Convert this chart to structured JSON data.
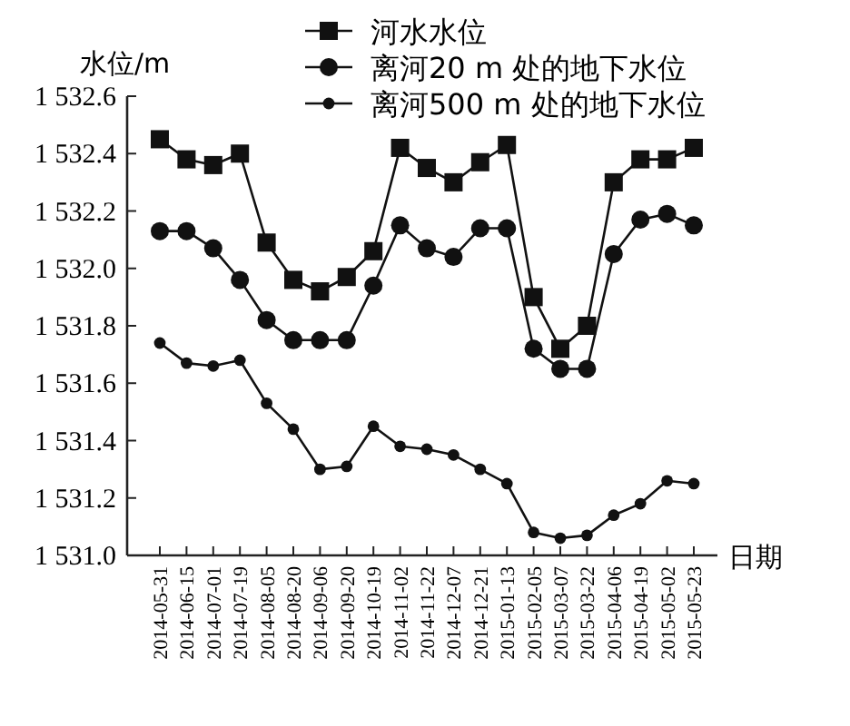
{
  "chart_data": {
    "type": "line",
    "xlabel": "日期",
    "ylabel": "水位/m",
    "categories": [
      "2014-05-31",
      "2014-06-15",
      "2014-07-01",
      "2014-07-19",
      "2014-08-05",
      "2014-08-20",
      "2014-09-06",
      "2014-09-20",
      "2014-10-19",
      "2014-11-02",
      "2014-11-22",
      "2014-12-07",
      "2014-12-21",
      "2015-01-13",
      "2015-02-05",
      "2015-03-07",
      "2015-03-22",
      "2015-04-06",
      "2015-04-19",
      "2015-05-02",
      "2015-05-23"
    ],
    "series": [
      {
        "name": "河水水位",
        "color": "#111111",
        "marker": "square",
        "values": [
          1532.45,
          1532.38,
          1532.36,
          1532.4,
          1532.09,
          1531.96,
          1531.92,
          1531.97,
          1532.06,
          1532.42,
          1532.35,
          1532.3,
          1532.37,
          1532.43,
          1531.9,
          1531.72,
          1531.8,
          1532.3,
          1532.38,
          1532.38,
          1532.42
        ]
      },
      {
        "name": "离河20 m 处的地下水位",
        "color": "#111111",
        "marker": "circle",
        "values": [
          1532.13,
          1532.13,
          1532.07,
          1531.96,
          1531.82,
          1531.75,
          1531.75,
          1531.75,
          1531.94,
          1532.15,
          1532.07,
          1532.04,
          1532.14,
          1532.14,
          1531.72,
          1531.65,
          1531.65,
          1532.05,
          1532.17,
          1532.19,
          1532.15
        ]
      },
      {
        "name": "离河500 m 处的地下水位",
        "color": "#111111",
        "marker": "dot",
        "values": [
          1531.74,
          1531.67,
          1531.66,
          1531.68,
          1531.53,
          1531.44,
          1531.3,
          1531.31,
          1531.45,
          1531.38,
          1531.37,
          1531.35,
          1531.3,
          1531.25,
          1531.08,
          1531.06,
          1531.07,
          1531.14,
          1531.18,
          1531.26,
          1531.25
        ]
      }
    ],
    "ylim": [
      1531.0,
      1532.6
    ],
    "yticks": [
      {
        "value": 1531.0,
        "label": "1 531.0"
      },
      {
        "value": 1531.2,
        "label": "1 531.2"
      },
      {
        "value": 1531.4,
        "label": "1 531.4"
      },
      {
        "value": 1531.6,
        "label": "1 531.6"
      },
      {
        "value": 1531.8,
        "label": "1 531.8"
      },
      {
        "value": 1532.0,
        "label": "1 532.0"
      },
      {
        "value": 1532.2,
        "label": "1 532.2"
      },
      {
        "value": 1532.4,
        "label": "1 532.4"
      },
      {
        "value": 1532.6,
        "label": "1 532.6"
      }
    ],
    "grid": false,
    "legend": "top",
    "line_style": "solid"
  }
}
